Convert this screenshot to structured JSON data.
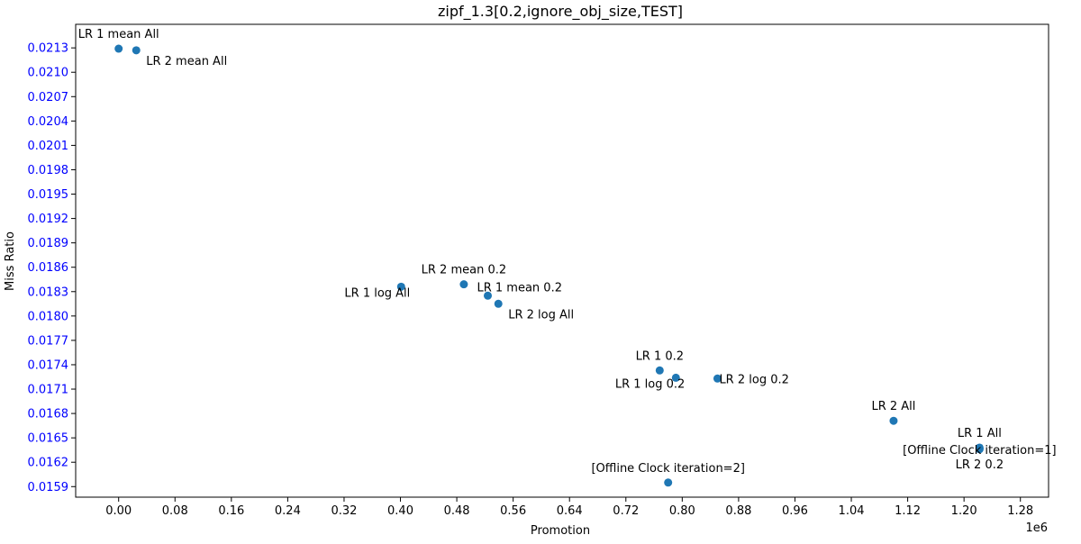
{
  "chart_data": {
    "type": "scatter",
    "title": "zipf_1.3[0.2,ignore_obj_size,TEST]",
    "xlabel": "Promotion",
    "ylabel": "Miss Ratio",
    "x_offset_label": "1e6",
    "xlim": [
      -0.061,
      1.32
    ],
    "ylim": [
      0.01577,
      0.02159
    ],
    "x_ticks": [
      0.0,
      0.08,
      0.16,
      0.24,
      0.32,
      0.4,
      0.48,
      0.56,
      0.64,
      0.72,
      0.8,
      0.88,
      0.96,
      1.04,
      1.12,
      1.2,
      1.28
    ],
    "x_tick_labels": [
      "0.00",
      "0.08",
      "0.16",
      "0.24",
      "0.32",
      "0.40",
      "0.48",
      "0.56",
      "0.64",
      "0.72",
      "0.80",
      "0.88",
      "0.96",
      "1.04",
      "1.12",
      "1.20",
      "1.28"
    ],
    "y_ticks": [
      0.0159,
      0.0162,
      0.0165,
      0.0168,
      0.0171,
      0.0174,
      0.0177,
      0.018,
      0.0183,
      0.0186,
      0.0189,
      0.0192,
      0.0195,
      0.0198,
      0.0201,
      0.0204,
      0.0207,
      0.021,
      0.0213
    ],
    "y_tick_labels": [
      "0.0159",
      "0.0162",
      "0.0165",
      "0.0168",
      "0.0171",
      "0.0174",
      "0.0177",
      "0.0180",
      "0.0183",
      "0.0186",
      "0.0189",
      "0.0192",
      "0.0195",
      "0.0198",
      "0.0201",
      "0.0204",
      "0.0207",
      "0.0210",
      "0.0213"
    ],
    "grid": false,
    "point_color": "#1f77b4",
    "y_tick_label_color": "#0000ff",
    "points": [
      {
        "label": "LR 1 mean All",
        "x": 0.0,
        "y": 0.02129,
        "label_pos": "above"
      },
      {
        "label": "LR 2 mean All",
        "x": 0.025,
        "y": 0.02127,
        "label_pos": "below-right"
      },
      {
        "label": "LR 1 log All",
        "x": 0.401,
        "y": 0.01836,
        "label_pos": "below-left"
      },
      {
        "label": "LR 2 mean 0.2",
        "x": 0.49,
        "y": 0.01839,
        "label_pos": "above"
      },
      {
        "label": "LR 1 mean 0.2",
        "x": 0.524,
        "y": 0.01825,
        "label_pos": "above-right"
      },
      {
        "label": "LR 2 log All",
        "x": 0.539,
        "y": 0.01815,
        "label_pos": "below-right"
      },
      {
        "label": "LR 1 0.2",
        "x": 0.768,
        "y": 0.01733,
        "label_pos": "above"
      },
      {
        "label": "LR 1 log 0.2",
        "x": 0.791,
        "y": 0.01724,
        "label_pos": "below-left"
      },
      {
        "label": "LR 2 log 0.2",
        "x": 0.85,
        "y": 0.01723,
        "label_pos": "right"
      },
      {
        "label": "LR 2 All",
        "x": 1.1,
        "y": 0.01671,
        "label_pos": "above"
      },
      {
        "label": "LR 1 All",
        "x": 1.222,
        "y": 0.01638,
        "label_pos": "above"
      },
      {
        "label": "[Offline Clock iteration=1]",
        "x": 1.222,
        "y": 0.01636,
        "label_pos": "center"
      },
      {
        "label": "LR 2 0.2",
        "x": 1.222,
        "y": 0.01637,
        "label_pos": "below"
      },
      {
        "label": "[Offline Clock iteration=2]",
        "x": 0.78,
        "y": 0.01595,
        "label_pos": "above"
      }
    ]
  }
}
